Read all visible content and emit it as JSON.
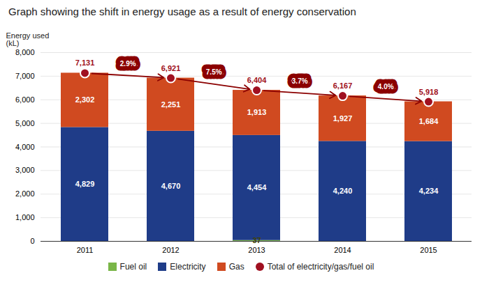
{
  "chart_data": {
    "type": "bar",
    "stacked": true,
    "title": "Graph showing the shift in energy usage as a result of energy conservation",
    "ylabel": "Energy used\n(kL)",
    "categories": [
      "2011",
      "2012",
      "2013",
      "2014",
      "2015"
    ],
    "series": [
      {
        "name": "Fuel oil",
        "color": "#7ab648",
        "values": [
          0,
          0,
          37,
          0,
          0
        ],
        "value_labels": [
          null,
          null,
          "37",
          null,
          null
        ]
      },
      {
        "name": "Electricity",
        "color": "#1f3c88",
        "values": [
          4829,
          4670,
          4454,
          4240,
          4234
        ],
        "value_labels": [
          "4,829",
          "4,670",
          "4,454",
          "4,240",
          "4,234"
        ]
      },
      {
        "name": "Gas",
        "color": "#d04a20",
        "values": [
          2302,
          2251,
          1913,
          1927,
          1684
        ],
        "value_labels": [
          "2,302",
          "2,251",
          "1,913",
          "1,927",
          "1,684"
        ]
      },
      {
        "name": "Total of electricity/gas/fuel oil",
        "type": "scatter",
        "marker": "circle",
        "color": "#a01020",
        "values": [
          7131,
          6921,
          6404,
          6167,
          5918
        ],
        "value_labels": [
          "7,131",
          "6,921",
          "6,404",
          "6,167",
          "5,918"
        ]
      }
    ],
    "annotations": [
      {
        "text": "2.9%",
        "color": "#8b0000"
      },
      {
        "text": "7.5%",
        "color": "#8b0000"
      },
      {
        "text": "3.7%",
        "color": "#8b0000"
      },
      {
        "text": "4.0%",
        "color": "#8b0000"
      }
    ],
    "ylim": [
      0,
      8000
    ],
    "yticks": [
      0,
      {
        "value": 1000,
        "label": "1,000"
      },
      {
        "value": 2000,
        "label": "2,000"
      },
      {
        "value": 3000,
        "label": "3,000"
      },
      {
        "value": 4000,
        "label": "4,000"
      },
      {
        "value": 5000,
        "label": "5,000"
      },
      {
        "value": 6000,
        "label": "6,000"
      },
      {
        "value": 7000,
        "label": "7,000"
      },
      {
        "value": 8000,
        "label": "8,000"
      }
    ],
    "grid": true,
    "legend": "bottom",
    "data_labels": true
  }
}
